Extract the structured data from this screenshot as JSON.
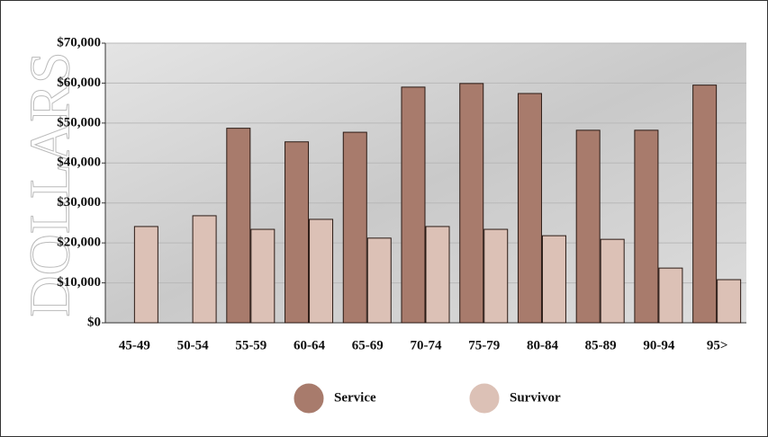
{
  "chart_data": {
    "type": "bar",
    "y_label": "DOLLARS",
    "categories": [
      "45-49",
      "50-54",
      "55-59",
      "60-64",
      "65-69",
      "70-74",
      "75-79",
      "80-84",
      "85-89",
      "90-94",
      "95>"
    ],
    "series": [
      {
        "name": "Service",
        "color": "#a87b6c",
        "values": [
          null,
          null,
          48700,
          45300,
          47700,
          59000,
          59900,
          57400,
          48200,
          48200,
          59500
        ]
      },
      {
        "name": "Survivor",
        "color": "#dcc1b6",
        "values": [
          24100,
          26800,
          23400,
          25900,
          21200,
          24100,
          23400,
          21800,
          20900,
          13700,
          10800
        ]
      }
    ],
    "ylim": [
      0,
      70000
    ],
    "yticks": [
      {
        "value": 0,
        "label": "$0"
      },
      {
        "value": 10000,
        "label": "$10,000"
      },
      {
        "value": 20000,
        "label": "$20,000"
      },
      {
        "value": 30000,
        "label": "$30,000"
      },
      {
        "value": 40000,
        "label": "$40,000"
      },
      {
        "value": 50000,
        "label": "$50,000"
      },
      {
        "value": 60000,
        "label": "$60,000"
      },
      {
        "value": 70000,
        "label": "$70,000"
      }
    ],
    "grid": true
  }
}
